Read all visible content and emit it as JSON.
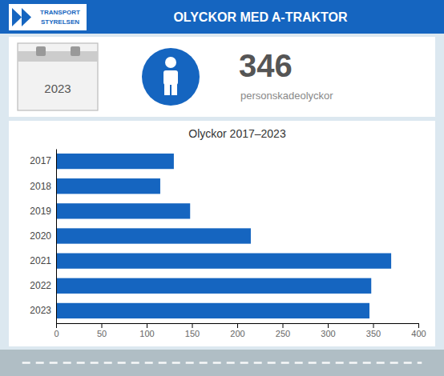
{
  "chart_data": {
    "type": "bar",
    "orientation": "horizontal",
    "title": "Olyckor 2017–2023",
    "annotations": [
      "OLYCKOR MED A-TRAKTOR",
      "TRANSPORT",
      "STYRELSEN",
      "2023",
      "346",
      "personskadeolyckor"
    ],
    "categories": [
      "2017",
      "2018",
      "2019",
      "2020",
      "2021",
      "2022",
      "2023"
    ],
    "values": [
      130,
      115,
      148,
      215,
      370,
      348,
      346
    ],
    "color": "#1565C0",
    "xlim": [
      0,
      400
    ],
    "xticks": [
      0,
      50,
      100,
      150,
      200,
      250,
      300,
      350,
      400
    ],
    "grid": false
  }
}
